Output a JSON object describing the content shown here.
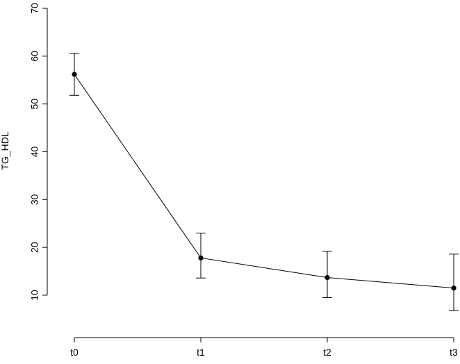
{
  "chart_data": {
    "type": "line",
    "title": "",
    "xlabel": "",
    "ylabel": "TG_HDL",
    "categories": [
      "t0",
      "t1",
      "t2",
      "t3"
    ],
    "series": [
      {
        "values": [
          56.2,
          17.8,
          13.7,
          11.5
        ],
        "lower": [
          51.8,
          13.6,
          9.5,
          6.8
        ],
        "upper": [
          60.6,
          23.0,
          19.2,
          18.6
        ]
      }
    ],
    "yticks": [
      10,
      20,
      30,
      40,
      50,
      60,
      70
    ],
    "ylim": [
      10,
      70
    ],
    "grid": false,
    "colors": {
      "line": "#000000",
      "points": "#000000",
      "errorbars": "#000000",
      "axes": "#000000",
      "background": "#ffffff"
    }
  }
}
